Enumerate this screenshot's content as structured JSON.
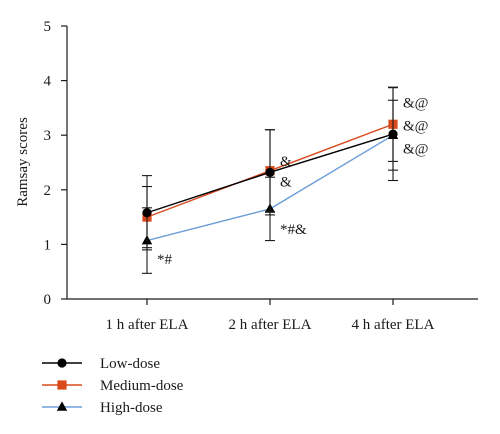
{
  "chart_data": {
    "type": "line",
    "title": "",
    "xlabel": "",
    "ylabel": "Ramsay scores",
    "ylim": [
      0,
      5
    ],
    "yticks": [
      "0",
      "1",
      "2",
      "3",
      "4",
      "5"
    ],
    "categories": [
      "1 h after ELA",
      "2 h after ELA",
      "4 h after ELA"
    ],
    "grid": false,
    "legend_position": "bottom-left",
    "series": [
      {
        "name": "Low-dose",
        "color": "#000000",
        "marker": "circle",
        "values": [
          1.58,
          2.32,
          3.02
        ],
        "error": [
          0.68,
          0.78,
          0.85
        ]
      },
      {
        "name": "Medium-dose",
        "color": "#d94a1c",
        "marker": "square",
        "values": [
          1.5,
          2.35,
          3.2
        ],
        "error": [
          0.56,
          0.75,
          0.68
        ]
      },
      {
        "name": "High-dose",
        "color": "#6f9fd8",
        "marker": "triangle",
        "values": [
          1.07,
          1.65,
          3.0
        ],
        "error": [
          0.6,
          0.58,
          0.64
        ]
      }
    ],
    "annotations": [
      {
        "category": "1 h after ELA",
        "text": "*#",
        "y": 0.73
      },
      {
        "category": "2 h after ELA",
        "text": "&",
        "y": 2.53
      },
      {
        "category": "2 h after ELA",
        "text": "&",
        "y": 2.15
      },
      {
        "category": "2 h after ELA",
        "text": "*#&",
        "y": 1.28
      },
      {
        "category": "4 h after ELA",
        "text": "&@",
        "y": 3.6
      },
      {
        "category": "4 h after ELA",
        "text": "&@",
        "y": 3.18
      },
      {
        "category": "4 h after ELA",
        "text": "&@",
        "y": 2.76
      }
    ]
  }
}
